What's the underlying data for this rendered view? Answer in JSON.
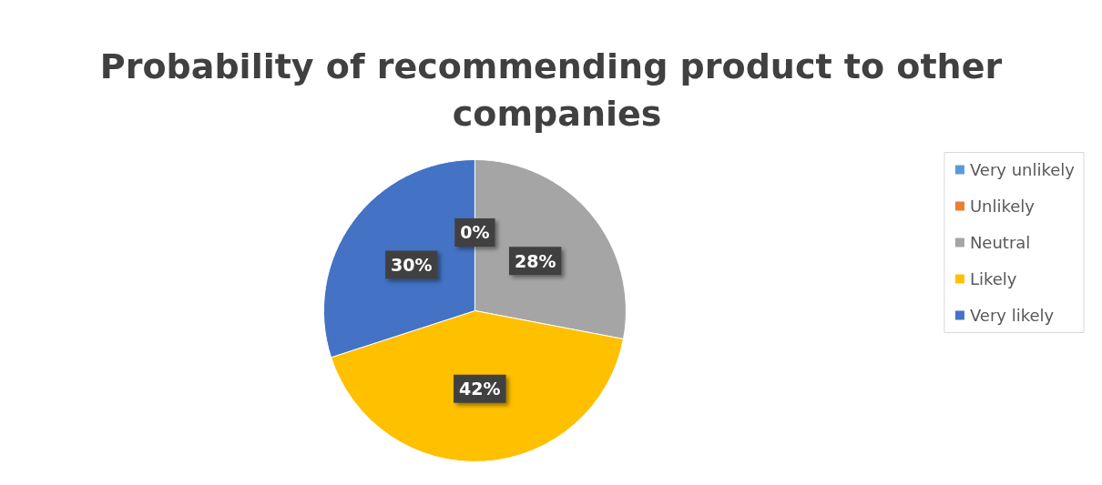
{
  "chart_data": {
    "type": "pie",
    "title": "Probability of recommending product to other companies",
    "categories": [
      "Very unlikely",
      "Unlikely",
      "Neutral",
      "Likely",
      "Very likely"
    ],
    "values": [
      0,
      0,
      28,
      42,
      30
    ],
    "colors": [
      "#5b9bd5",
      "#ed7d31",
      "#a5a5a5",
      "#ffc000",
      "#4472c4"
    ],
    "value_labels": [
      "0%",
      null,
      "28%",
      "42%",
      "30%"
    ],
    "legend": "right"
  }
}
